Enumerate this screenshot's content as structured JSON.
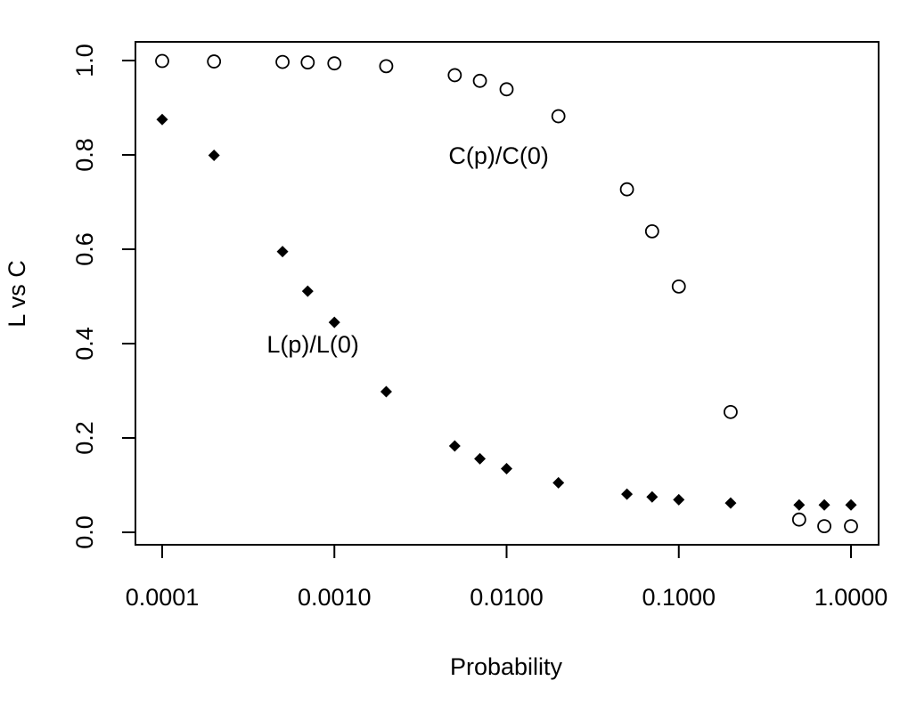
{
  "chart_data": {
    "type": "scatter",
    "title": "",
    "xlabel": "Probability",
    "ylabel": "L vs C",
    "x_scale": "log",
    "xlim": [
      0.0001,
      1.0
    ],
    "ylim": [
      0.0,
      1.0
    ],
    "grid": false,
    "legend": "none",
    "x_ticks": [
      0.0001,
      0.001,
      0.01,
      0.1,
      1.0
    ],
    "x_tick_labels": [
      "0.0001",
      "0.0010",
      "0.0100",
      "0.1000",
      "1.0000"
    ],
    "y_ticks": [
      0.0,
      0.2,
      0.4,
      0.6,
      0.8,
      1.0
    ],
    "y_tick_labels": [
      "0.0",
      "0.2",
      "0.4",
      "0.6",
      "0.8",
      "1.0"
    ],
    "annotations": [
      {
        "text": "C(p)/C(0)",
        "x": 0.009,
        "y": 0.8
      },
      {
        "text": "L(p)/L(0)",
        "x": 0.00075,
        "y": 0.4
      }
    ],
    "series": [
      {
        "marker": "open-circle",
        "color": "#000000",
        "x": [
          0.0001,
          0.0002,
          0.0005,
          0.0007,
          0.001,
          0.002,
          0.005,
          0.007,
          0.01,
          0.02,
          0.05,
          0.07,
          0.1,
          0.2,
          0.5,
          0.7,
          1.0
        ],
        "y": [
          0.999,
          0.998,
          0.997,
          0.996,
          0.994,
          0.988,
          0.969,
          0.957,
          0.939,
          0.882,
          0.727,
          0.638,
          0.521,
          0.255,
          0.027,
          0.013,
          0.013
        ]
      },
      {
        "marker": "filled-diamond",
        "color": "#000000",
        "x": [
          0.0001,
          0.0002,
          0.0005,
          0.0007,
          0.001,
          0.002,
          0.005,
          0.007,
          0.01,
          0.02,
          0.05,
          0.07,
          0.1,
          0.2,
          0.5,
          0.7,
          1.0
        ],
        "y": [
          0.875,
          0.799,
          0.595,
          0.511,
          0.445,
          0.298,
          0.183,
          0.156,
          0.135,
          0.105,
          0.081,
          0.075,
          0.069,
          0.062,
          0.058,
          0.058,
          0.058
        ]
      }
    ]
  }
}
